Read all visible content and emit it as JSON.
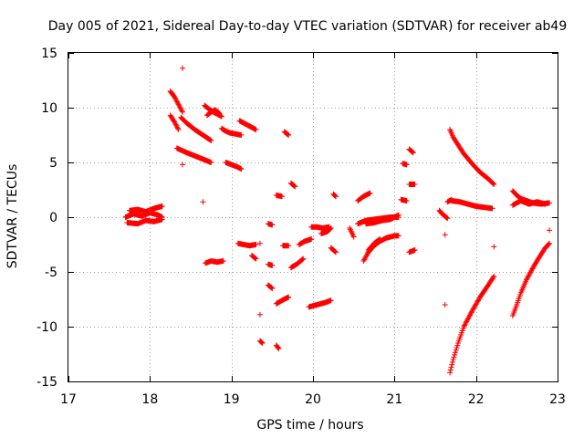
{
  "chart_data": {
    "type": "scatter",
    "title": "Day 005 of 2021, Sidereal Day-to-day VTEC variation (SDTVAR) for receiver ab49",
    "xlabel": "GPS time / hours",
    "ylabel": "SDTVAR / TECUs",
    "xlim": [
      17,
      23
    ],
    "ylim": [
      -15,
      15
    ],
    "xticks": [
      17,
      18,
      19,
      20,
      21,
      22,
      23
    ],
    "yticks": [
      -15,
      -10,
      -5,
      0,
      5,
      10,
      15
    ],
    "xtick_labels": [
      "17",
      "18",
      "19",
      "20",
      "21",
      "22",
      "23"
    ],
    "ytick_labels": [
      "-15",
      "-10",
      "-5",
      "0",
      "5",
      "10",
      "15"
    ],
    "grid": true,
    "marker": "+",
    "color": "#ff0000",
    "segments": [
      {
        "x": [
          17.7,
          17.8,
          17.9,
          18.0,
          18.1,
          18.15
        ],
        "y": [
          0.0,
          0.3,
          0.1,
          0.4,
          0.2,
          0.0
        ]
      },
      {
        "x": [
          17.72,
          17.85,
          17.95,
          18.05,
          18.15
        ],
        "y": [
          -0.5,
          -0.6,
          -0.3,
          -0.4,
          -0.2
        ]
      },
      {
        "x": [
          17.75,
          17.85,
          17.95,
          18.05,
          18.15
        ],
        "y": [
          0.6,
          0.7,
          0.5,
          0.8,
          1.0
        ]
      },
      {
        "x": [
          18.25,
          18.3,
          18.35,
          18.4
        ],
        "y": [
          11.5,
          11.0,
          10.3,
          9.6
        ]
      },
      {
        "x": [
          18.25,
          18.3,
          18.35
        ],
        "y": [
          9.3,
          8.7,
          8.0
        ]
      },
      {
        "x": [
          18.38,
          18.45,
          18.55,
          18.65,
          18.75
        ],
        "y": [
          9.1,
          8.6,
          8.0,
          7.5,
          7.0
        ]
      },
      {
        "x": [
          18.33,
          18.45,
          18.55,
          18.65,
          18.75
        ],
        "y": [
          6.3,
          5.9,
          5.6,
          5.3,
          5.0
        ]
      },
      {
        "x": [
          18.67,
          18.72,
          18.78,
          18.83,
          18.88
        ],
        "y": [
          10.2,
          9.9,
          9.6,
          9.4,
          9.2
        ]
      },
      {
        "x": [
          18.7,
          18.75,
          18.8,
          18.85
        ],
        "y": [
          9.3,
          9.6,
          9.8,
          9.5
        ]
      },
      {
        "x": [
          18.88,
          18.92,
          18.98,
          19.05,
          19.12
        ],
        "y": [
          8.1,
          7.9,
          7.7,
          7.6,
          7.5
        ]
      },
      {
        "x": [
          18.93,
          19.0,
          19.07,
          19.12
        ],
        "y": [
          5.0,
          4.8,
          4.6,
          4.4
        ]
      },
      {
        "x": [
          19.1,
          19.15,
          19.2,
          19.25,
          19.3
        ],
        "y": [
          8.8,
          8.6,
          8.4,
          8.2,
          8.0
        ]
      },
      {
        "x": [
          18.68,
          18.75,
          18.82,
          18.9
        ],
        "y": [
          -4.2,
          -4.0,
          -4.1,
          -4.0
        ]
      },
      {
        "x": [
          19.08,
          19.15,
          19.22,
          19.3
        ],
        "y": [
          -2.4,
          -2.5,
          -2.6,
          -2.5
        ]
      },
      {
        "x": [
          19.25,
          19.3
        ],
        "y": [
          -3.5,
          -3.8
        ]
      },
      {
        "x": [
          19.35
        ],
        "y": [
          -2.4
        ]
      },
      {
        "x": [
          19.45,
          19.5
        ],
        "y": [
          -0.6,
          -0.7
        ]
      },
      {
        "x": [
          19.45,
          19.5
        ],
        "y": [
          -4.3,
          -4.4
        ]
      },
      {
        "x": [
          19.45,
          19.5
        ],
        "y": [
          -6.2,
          -6.5
        ]
      },
      {
        "x": [
          19.35
        ],
        "y": [
          -8.9
        ]
      },
      {
        "x": [
          19.35,
          19.38
        ],
        "y": [
          -11.3,
          -11.5
        ]
      },
      {
        "x": [
          19.55,
          19.58
        ],
        "y": [
          -11.7,
          -12.0
        ]
      },
      {
        "x": [
          19.55,
          19.62,
          19.7
        ],
        "y": [
          -7.9,
          -7.6,
          -7.3
        ]
      },
      {
        "x": [
          19.55,
          19.62
        ],
        "y": [
          2.0,
          1.9
        ]
      },
      {
        "x": [
          19.65,
          19.7
        ],
        "y": [
          7.8,
          7.5
        ]
      },
      {
        "x": [
          19.73,
          19.78
        ],
        "y": [
          3.1,
          2.8
        ]
      },
      {
        "x": [
          19.63,
          19.7
        ],
        "y": [
          -2.6,
          -2.6
        ]
      },
      {
        "x": [
          19.73,
          19.8,
          19.88
        ],
        "y": [
          -4.6,
          -4.3,
          -3.8
        ]
      },
      {
        "x": [
          19.83,
          19.9,
          19.98
        ],
        "y": [
          -2.5,
          -2.2,
          -2.0
        ]
      },
      {
        "x": [
          19.95,
          20.05,
          20.15,
          20.22
        ],
        "y": [
          -8.2,
          -8.0,
          -7.8,
          -7.6
        ]
      },
      {
        "x": [
          19.98,
          20.05,
          20.12,
          20.2
        ],
        "y": [
          -0.9,
          -0.9,
          -1.0,
          -0.9
        ]
      },
      {
        "x": [
          20.1,
          20.18,
          20.22
        ],
        "y": [
          -1.5,
          -1.3,
          -1.0
        ]
      },
      {
        "x": [
          20.22,
          20.28
        ],
        "y": [
          -2.8,
          -3.2
        ]
      },
      {
        "x": [
          20.25,
          20.28
        ],
        "y": [
          2.1,
          1.9
        ]
      },
      {
        "x": [
          20.45,
          20.5
        ],
        "y": [
          -1.0,
          -1.8
        ]
      },
      {
        "x": [
          20.55,
          20.62,
          20.7
        ],
        "y": [
          1.5,
          1.9,
          2.2
        ]
      },
      {
        "x": [
          20.55,
          20.65,
          20.75,
          20.85,
          20.95,
          21.05
        ],
        "y": [
          -0.6,
          -0.3,
          -0.2,
          -0.1,
          0.0,
          0.0
        ]
      },
      {
        "x": [
          20.65,
          20.75,
          20.85,
          20.95,
          21.05
        ],
        "y": [
          -0.6,
          -0.5,
          -0.3,
          -0.2,
          0.2
        ]
      },
      {
        "x": [
          20.62,
          20.68,
          20.75,
          20.82,
          20.9,
          21.0,
          21.05
        ],
        "y": [
          -4.0,
          -3.2,
          -2.6,
          -2.2,
          -1.9,
          -1.7,
          -1.7
        ]
      },
      {
        "x": [
          20.68,
          20.75,
          20.82
        ],
        "y": [
          -3.0,
          -2.4,
          -2.0
        ]
      },
      {
        "x": [
          21.1,
          21.15
        ],
        "y": [
          4.9,
          4.8
        ]
      },
      {
        "x": [
          21.08,
          21.15
        ],
        "y": [
          1.6,
          1.5
        ]
      },
      {
        "x": [
          21.18,
          21.23
        ],
        "y": [
          6.2,
          5.9
        ]
      },
      {
        "x": [
          21.18,
          21.25
        ],
        "y": [
          3.0,
          3.0
        ]
      },
      {
        "x": [
          21.18,
          21.25
        ],
        "y": [
          -3.2,
          -3.0
        ]
      },
      {
        "x": [
          21.55,
          21.6,
          21.65
        ],
        "y": [
          0.6,
          0.2,
          -0.1
        ]
      },
      {
        "x": [
          21.62
        ],
        "y": [
          -1.6
        ]
      },
      {
        "x": [
          21.62
        ],
        "y": [
          -8.0
        ]
      },
      {
        "x": [
          21.68,
          21.72,
          21.78,
          21.85,
          21.95,
          22.05,
          22.15,
          22.22
        ],
        "y": [
          8.0,
          7.3,
          6.6,
          5.8,
          4.9,
          4.1,
          3.5,
          3.0
        ]
      },
      {
        "x": [
          21.7,
          21.8,
          21.9,
          22.0,
          22.1,
          22.2
        ],
        "y": [
          1.5,
          1.4,
          1.2,
          1.0,
          0.9,
          0.8
        ]
      },
      {
        "x": [
          21.65,
          21.7
        ],
        "y": [
          1.4,
          1.6
        ]
      },
      {
        "x": [
          21.68,
          21.72,
          21.78,
          21.85,
          21.95,
          22.05,
          22.15,
          22.22
        ],
        "y": [
          -14.2,
          -13.0,
          -11.5,
          -10.0,
          -8.6,
          -7.3,
          -6.2,
          -5.4
        ]
      },
      {
        "x": [
          22.22
        ],
        "y": [
          -2.7
        ]
      },
      {
        "x": [
          22.45,
          22.5,
          22.55,
          22.62,
          22.7,
          22.8,
          22.9
        ],
        "y": [
          2.4,
          2.0,
          1.7,
          1.5,
          1.3,
          1.2,
          1.3
        ]
      },
      {
        "x": [
          22.45,
          22.55,
          22.65,
          22.75,
          22.85
        ],
        "y": [
          1.1,
          1.5,
          1.2,
          1.4,
          1.2
        ]
      },
      {
        "x": [
          22.45,
          22.5,
          22.55,
          22.62,
          22.7,
          22.78,
          22.85,
          22.9
        ],
        "y": [
          -9.0,
          -8.0,
          -6.9,
          -5.7,
          -4.6,
          -3.6,
          -2.8,
          -2.4
        ]
      },
      {
        "x": [
          22.9
        ],
        "y": [
          -1.2
        ]
      },
      {
        "x": [
          18.4
        ],
        "y": [
          13.6
        ]
      },
      {
        "x": [
          18.65
        ],
        "y": [
          1.4
        ]
      },
      {
        "x": [
          18.4
        ],
        "y": [
          4.8
        ]
      }
    ]
  }
}
